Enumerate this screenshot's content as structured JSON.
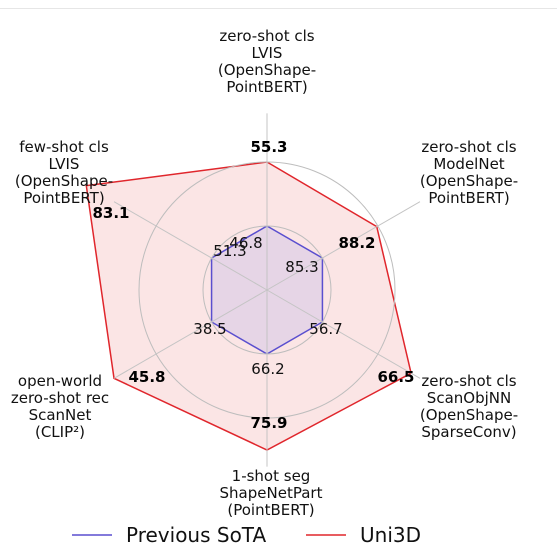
{
  "chart_data": {
    "type": "radar",
    "axes": [
      {
        "lines": [
          "zero-shot cls",
          "LVIS",
          "(OpenShape-",
          "PointBERT)"
        ],
        "prev": "46.8",
        "uni": "55.3"
      },
      {
        "lines": [
          "zero-shot cls",
          "ModelNet",
          "(OpenShape-",
          "PointBERT)"
        ],
        "prev": "85.3",
        "uni": "88.2"
      },
      {
        "lines": [
          "zero-shot cls",
          "ScanObjNN",
          "(OpenShape-",
          "SparseConv)"
        ],
        "prev": "56.7",
        "uni": "66.5"
      },
      {
        "lines": [
          "1-shot seg",
          "ShapeNetPart",
          "(PointBERT)"
        ],
        "prev": "66.2",
        "uni": "75.9"
      },
      {
        "lines": [
          "open-world",
          "zero-shot rec",
          "ScanNet",
          "(CLIP²)"
        ],
        "prev": "38.5",
        "uni": "45.8"
      },
      {
        "lines": [
          "few-shot cls",
          "LVIS",
          "(OpenShape-",
          "PointBERT)"
        ],
        "prev": "51.3",
        "uni": "83.1"
      }
    ],
    "series": [
      {
        "name": "Previous SoTA",
        "color": "#5a4fcf",
        "fill": "#d8c9e6",
        "values": [
          46.8,
          85.3,
          56.7,
          66.2,
          38.5,
          51.3
        ],
        "normalized": [
          0.5,
          0.5,
          0.5,
          0.5,
          0.5,
          0.5
        ]
      },
      {
        "name": "Uni3D",
        "color": "#e0262c",
        "fill": "#f9dcdc",
        "values": [
          55.3,
          88.2,
          66.5,
          75.9,
          45.8,
          83.1
        ],
        "normalized": [
          1.0,
          0.99,
          1.3,
          1.25,
          1.38,
          1.63
        ]
      }
    ],
    "grid": true,
    "legend": "bottom"
  }
}
